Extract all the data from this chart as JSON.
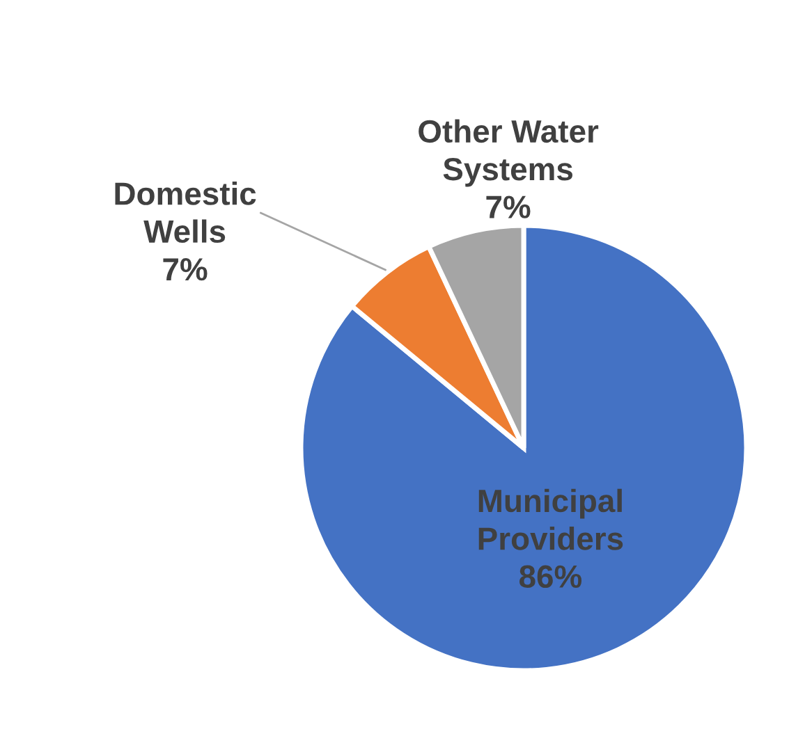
{
  "chart_data": {
    "type": "pie",
    "categories": [
      "Municipal\nProviders",
      "Domestic\nWells",
      "Other Water\nSystems"
    ],
    "values": [
      86,
      7,
      7
    ],
    "value_labels": [
      "86%",
      "7%",
      "7%"
    ],
    "colors": [
      "#4472c4",
      "#ed7d31",
      "#a5a5a5"
    ],
    "legend": false
  }
}
